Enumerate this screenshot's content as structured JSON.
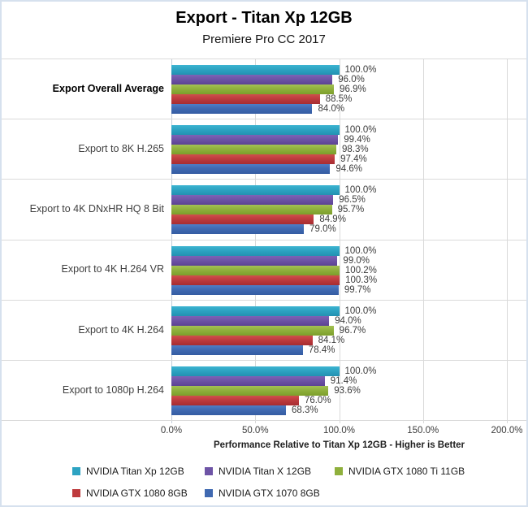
{
  "title": "Export - Titan Xp 12GB",
  "subtitle": "Premiere Pro CC 2017",
  "chart_data": {
    "type": "bar",
    "orientation": "horizontal",
    "title": "Export - Titan Xp 12GB",
    "subtitle": "Premiere Pro CC 2017",
    "xlabel": "Performance Relative to Titan Xp 12GB - Higher is Better",
    "xlim": [
      0,
      200
    ],
    "x_ticks": [
      "0.0%",
      "50.0%",
      "100.0%",
      "150.0%",
      "200.0%"
    ],
    "x_tick_values": [
      0,
      50,
      100,
      150,
      200
    ],
    "grid": "vertical-gridlines-on",
    "legend_position": "bottom",
    "value_label_format": "one-decimal-percent",
    "categories": [
      "Export Overall Average",
      "Export to 8K H.265",
      "Export to 4K DNxHR HQ 8 Bit",
      "Export to 4K H.264 VR",
      "Export to 4K H.264",
      "Export to 1080p H.264"
    ],
    "emphasized_category": "Export Overall Average",
    "series": [
      {
        "name": "NVIDIA Titan Xp 12GB",
        "color": "#2DA3C2",
        "color_top": "#3CB4D1",
        "color_bottom": "#2391B1",
        "values": [
          100.0,
          100.0,
          100.0,
          100.0,
          100.0,
          100.0
        ]
      },
      {
        "name": "NVIDIA Titan X 12GB",
        "color": "#6E54A6",
        "color_top": "#7D62B5",
        "color_bottom": "#5C4293",
        "values": [
          96.0,
          99.4,
          96.5,
          99.0,
          94.0,
          91.4
        ]
      },
      {
        "name": "NVIDIA GTX 1080 Ti 11GB",
        "color": "#8FB03C",
        "color_top": "#A3C154",
        "color_bottom": "#7C9E2B",
        "values": [
          96.9,
          98.3,
          95.7,
          100.2,
          96.7,
          93.6
        ]
      },
      {
        "name": "NVIDIA GTX 1080 8GB",
        "color": "#BE3B3E",
        "color_top": "#CE4F4C",
        "color_bottom": "#A62D31",
        "values": [
          88.5,
          97.4,
          84.9,
          100.3,
          84.1,
          76.0
        ]
      },
      {
        "name": "NVIDIA GTX 1070 8GB",
        "color": "#4069B1",
        "color_top": "#4E7DC6",
        "color_bottom": "#345CA3",
        "values": [
          84.0,
          94.6,
          79.0,
          99.7,
          78.4,
          68.3
        ]
      }
    ]
  }
}
